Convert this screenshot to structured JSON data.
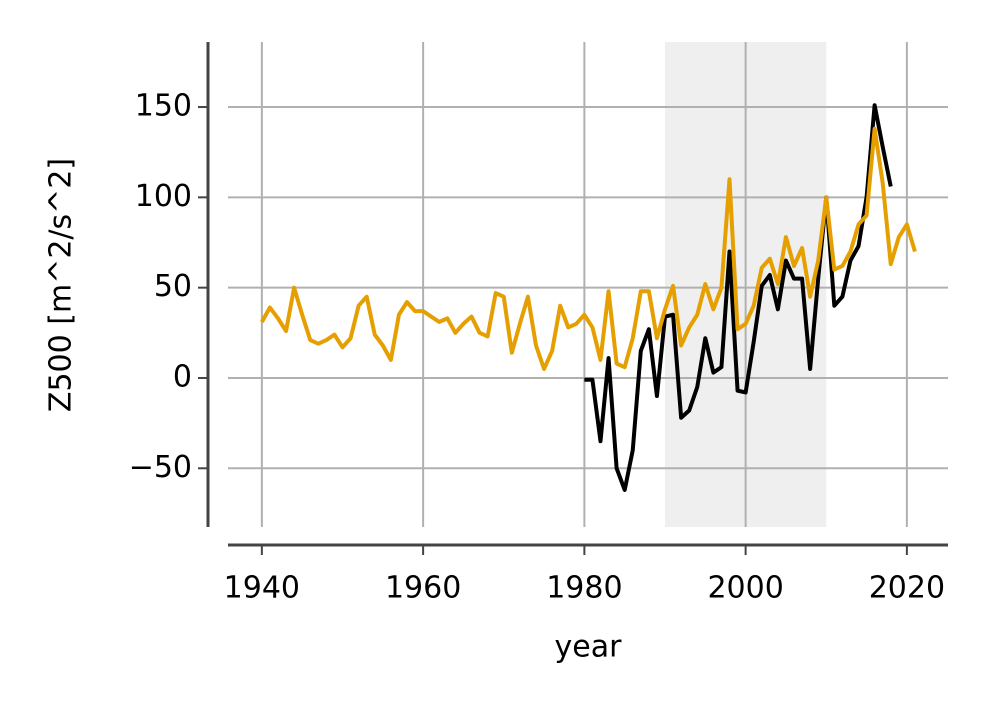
{
  "chart_data": {
    "type": "line",
    "xlabel": "year",
    "ylabel": "Z500 [m^2/s^2]",
    "xlim": [
      1935.8,
      2025.1
    ],
    "ylim": [
      -82.5,
      186
    ],
    "xticks": [
      1940,
      1960,
      1980,
      2000,
      2020
    ],
    "yticks": [
      {
        "value": -50,
        "label": "−50"
      },
      0,
      50,
      100,
      150
    ],
    "grid": true,
    "span": {
      "x": [
        1990,
        2010
      ],
      "color": "#efefef"
    },
    "x": [
      1940,
      1941,
      1942,
      1943,
      1944,
      1945,
      1946,
      1947,
      1948,
      1949,
      1950,
      1951,
      1952,
      1953,
      1954,
      1955,
      1956,
      1957,
      1958,
      1959,
      1960,
      1961,
      1962,
      1963,
      1964,
      1965,
      1966,
      1967,
      1968,
      1969,
      1970,
      1971,
      1972,
      1973,
      1974,
      1975,
      1976,
      1977,
      1978,
      1979,
      1980,
      1981,
      1982,
      1983,
      1984,
      1985,
      1986,
      1987,
      1988,
      1989,
      1990,
      1991,
      1992,
      1993,
      1994,
      1995,
      1996,
      1997,
      1998,
      1999,
      2000,
      2001,
      2002,
      2003,
      2004,
      2005,
      2006,
      2007,
      2008,
      2009,
      2010,
      2011,
      2012,
      2013,
      2014,
      2015,
      2016,
      2017,
      2018,
      2019,
      2020,
      2021
    ],
    "series": [
      {
        "color": "#000000",
        "values": [
          null,
          null,
          null,
          null,
          null,
          null,
          null,
          null,
          null,
          null,
          null,
          null,
          null,
          null,
          null,
          null,
          null,
          null,
          null,
          null,
          null,
          null,
          null,
          null,
          null,
          null,
          null,
          null,
          null,
          null,
          null,
          null,
          null,
          null,
          null,
          null,
          null,
          null,
          null,
          null,
          -1,
          -1,
          -35,
          11,
          -50,
          -62,
          -40,
          15,
          27,
          -10,
          34,
          35,
          -22,
          -18,
          -5,
          22,
          3,
          6,
          70,
          -7,
          -8,
          20,
          51,
          57,
          38,
          65,
          55,
          55,
          5,
          55,
          100,
          40,
          45,
          65,
          73,
          100,
          151,
          128,
          106,
          null,
          null,
          null
        ]
      },
      {
        "color": "#e69f00",
        "values": [
          31,
          39,
          33,
          26,
          50,
          35,
          21,
          19,
          21,
          24,
          17,
          22,
          40,
          45,
          24,
          18,
          10,
          35,
          42,
          37,
          37,
          34,
          31,
          33,
          25,
          30,
          34,
          25,
          23,
          47,
          45,
          14,
          30,
          45,
          18,
          5,
          15,
          40,
          28,
          30,
          35,
          28,
          10,
          48,
          8,
          6,
          22,
          48,
          48,
          22,
          38,
          51,
          18,
          28,
          35,
          52,
          38,
          50,
          110,
          27,
          30,
          40,
          61,
          66,
          52,
          78,
          62,
          72,
          45,
          65,
          100,
          60,
          62,
          70,
          85,
          90,
          138,
          108,
          63,
          78,
          85,
          70
        ]
      }
    ]
  }
}
